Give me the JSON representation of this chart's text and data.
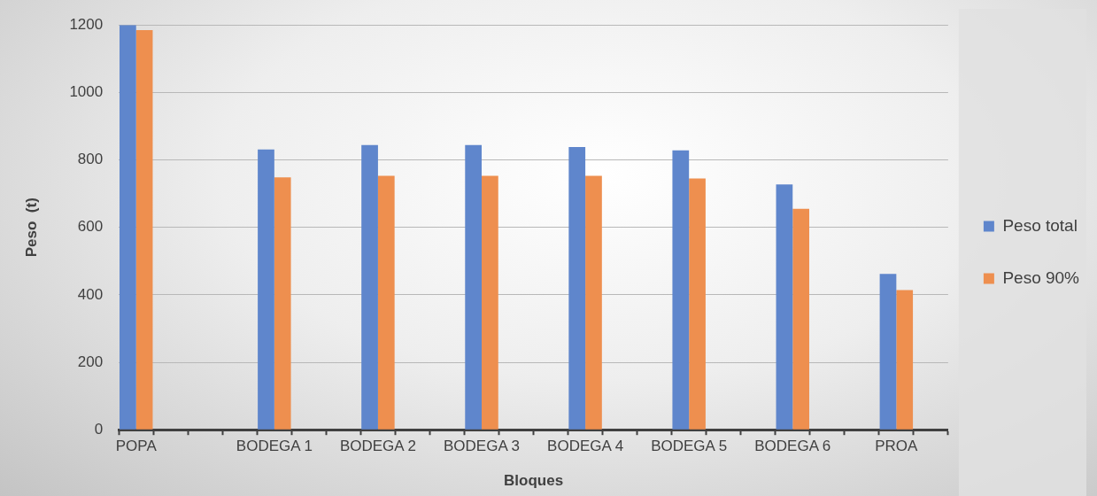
{
  "chart_data": {
    "type": "bar",
    "xlabel": "Bloques",
    "ylabel": "Peso  (t)",
    "categories": [
      "POPA",
      null,
      null,
      null,
      "BODEGA 1",
      null,
      null,
      "BODEGA 2",
      null,
      null,
      "BODEGA 3",
      null,
      null,
      "BODEGA 4",
      null,
      null,
      "BODEGA 5",
      null,
      null,
      "BODEGA 6",
      null,
      null,
      "PROA",
      null
    ],
    "series": [
      {
        "name": "Peso total",
        "color": "#5f86cc",
        "values": [
          1200,
          null,
          null,
          null,
          831,
          null,
          null,
          844,
          null,
          null,
          844,
          null,
          null,
          838,
          null,
          null,
          828,
          null,
          null,
          727,
          null,
          null,
          462,
          null
        ]
      },
      {
        "name": "Peso 90%",
        "color": "#ee8f4f",
        "values": [
          1185,
          null,
          null,
          null,
          748,
          null,
          null,
          753,
          null,
          null,
          753,
          null,
          null,
          753,
          null,
          null,
          745,
          null,
          null,
          655,
          null,
          null,
          414,
          null
        ]
      }
    ],
    "ylim": [
      0,
      1200
    ],
    "yticks": [
      0,
      200,
      400,
      600,
      800,
      1000,
      1200
    ],
    "grid": "y",
    "legend": "right"
  }
}
